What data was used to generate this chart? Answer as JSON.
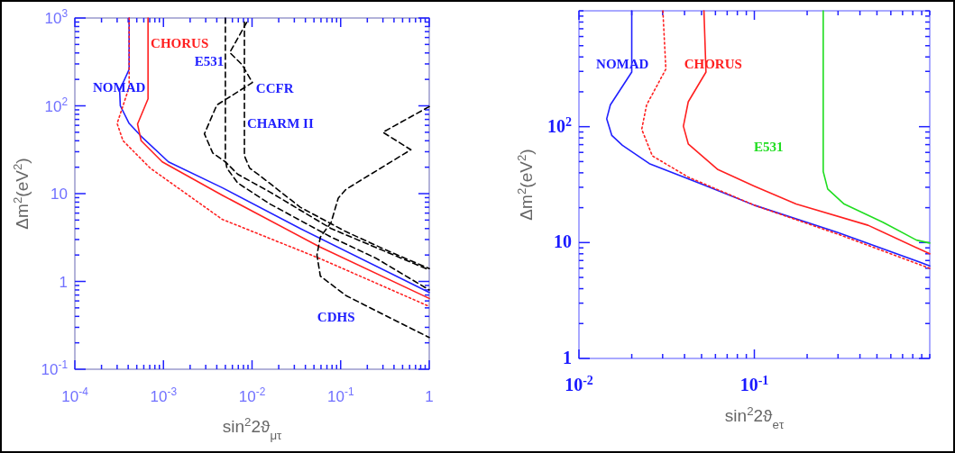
{
  "chart_data": [
    {
      "type": "line",
      "xlabel": "sin$^{2}$2ϑ$_{μτ}$",
      "ylabel": "Δm$^{2}$(eV$^{2}$)",
      "log": "xy",
      "grid": false,
      "xlim": [
        0.0001,
        1
      ],
      "ylim": [
        0.1,
        1000
      ],
      "xticks": [
        {
          "value": 0.0001,
          "label": "10$^{-4}$"
        },
        {
          "value": 0.0002,
          "label": null
        },
        {
          "value": 0.0003,
          "label": null
        },
        {
          "value": 0.0004,
          "label": null
        },
        {
          "value": 0.0005,
          "label": null
        },
        {
          "value": 0.0006,
          "label": null
        },
        {
          "value": 0.0007,
          "label": null
        },
        {
          "value": 0.0008,
          "label": null
        },
        {
          "value": 0.0009,
          "label": null
        },
        {
          "value": 0.001,
          "label": "10$^{-3}$"
        },
        {
          "value": 0.002,
          "label": null
        },
        {
          "value": 0.003,
          "label": null
        },
        {
          "value": 0.004,
          "label": null
        },
        {
          "value": 0.005,
          "label": null
        },
        {
          "value": 0.006,
          "label": null
        },
        {
          "value": 0.007,
          "label": null
        },
        {
          "value": 0.008,
          "label": null
        },
        {
          "value": 0.009,
          "label": null
        },
        {
          "value": 0.01,
          "label": "10$^{-2}$"
        },
        {
          "value": 0.02,
          "label": null
        },
        {
          "value": 0.03,
          "label": null
        },
        {
          "value": 0.04,
          "label": null
        },
        {
          "value": 0.05,
          "label": null
        },
        {
          "value": 0.06,
          "label": null
        },
        {
          "value": 0.07,
          "label": null
        },
        {
          "value": 0.08,
          "label": null
        },
        {
          "value": 0.09,
          "label": null
        },
        {
          "value": 0.1,
          "label": "10$^{-1}$"
        },
        {
          "value": 0.2,
          "label": null
        },
        {
          "value": 0.3,
          "label": null
        },
        {
          "value": 0.4,
          "label": null
        },
        {
          "value": 0.5,
          "label": null
        },
        {
          "value": 0.6,
          "label": null
        },
        {
          "value": 0.7,
          "label": null
        },
        {
          "value": 0.8,
          "label": null
        },
        {
          "value": 0.9,
          "label": null
        },
        {
          "value": 1,
          "label": "1"
        }
      ],
      "yticks": [
        {
          "value": 0.1,
          "label": "10$^{-1}$"
        },
        {
          "value": 0.2,
          "label": null
        },
        {
          "value": 0.3,
          "label": null
        },
        {
          "value": 0.4,
          "label": null
        },
        {
          "value": 0.5,
          "label": null
        },
        {
          "value": 0.6,
          "label": null
        },
        {
          "value": 0.7,
          "label": null
        },
        {
          "value": 0.8,
          "label": null
        },
        {
          "value": 0.9,
          "label": null
        },
        {
          "value": 1,
          "label": "1"
        },
        {
          "value": 2,
          "label": null
        },
        {
          "value": 3,
          "label": null
        },
        {
          "value": 4,
          "label": null
        },
        {
          "value": 5,
          "label": null
        },
        {
          "value": 6,
          "label": null
        },
        {
          "value": 7,
          "label": null
        },
        {
          "value": 8,
          "label": null
        },
        {
          "value": 9,
          "label": null
        },
        {
          "value": 10,
          "label": "10"
        },
        {
          "value": 20,
          "label": null
        },
        {
          "value": 30,
          "label": null
        },
        {
          "value": 40,
          "label": null
        },
        {
          "value": 50,
          "label": null
        },
        {
          "value": 60,
          "label": null
        },
        {
          "value": 70,
          "label": null
        },
        {
          "value": 80,
          "label": null
        },
        {
          "value": 90,
          "label": null
        },
        {
          "value": 100,
          "label": "10$^{2}$"
        },
        {
          "value": 200,
          "label": null
        },
        {
          "value": 300,
          "label": null
        },
        {
          "value": 400,
          "label": null
        },
        {
          "value": 500,
          "label": null
        },
        {
          "value": 600,
          "label": null
        },
        {
          "value": 700,
          "label": null
        },
        {
          "value": 800,
          "label": null
        },
        {
          "value": 900,
          "label": null
        },
        {
          "value": 1000,
          "label": "10$^{3}$"
        }
      ],
      "annotations": [
        "NOMAD",
        "CHORUS",
        "E531",
        "CCFR",
        "CHARM II",
        "CDHS"
      ],
      "series": [
        {
          "color": "#2020ff",
          "line_style": "solid",
          "x": [
            0.00041,
            0.00041,
            0.00032,
            0.000326,
            0.00041,
            0.00056,
            0.00114,
            0.0046,
            0.035,
            1
          ],
          "values": [
            1000,
            260,
            150,
            100,
            63,
            45,
            23,
            11.7,
            4.0,
            0.75
          ]
        },
        {
          "color": "#ff2020",
          "line_style": "solid",
          "x": [
            0.00067,
            0.00067,
            0.00051,
            0.00056,
            0.00097,
            0.0046,
            0.057,
            1
          ],
          "values": [
            1000,
            120,
            62,
            40,
            23,
            9.6,
            2.5,
            0.64
          ]
        },
        {
          "color": "#ff2020",
          "line_style": "dotted",
          "x": [
            0.00041,
            0.00041,
            0.00034,
            0.0003,
            0.00035,
            0.00071,
            0.0046,
            0.057,
            1
          ],
          "values": [
            1000,
            163,
            92,
            63,
            40,
            19.5,
            5.1,
            1.84,
            0.52
          ]
        },
        {
          "color": "#000000",
          "line_style": "dashed",
          "x": [
            0.005,
            0.005,
            0.0052,
            0.0069,
            0.016,
            0.078,
            0.25,
            1
          ],
          "values": [
            1000,
            24.5,
            19.5,
            13.2,
            7.6,
            3.2,
            1.84,
            0.8
          ]
        },
        {
          "color": "#000000",
          "line_style": "dashed",
          "x": [
            0.0087,
            0.0056,
            0.0077,
            0.0101,
            0.004,
            0.0029,
            0.0036,
            0.005,
            0.0069,
            0.016,
            0.078,
            1
          ],
          "values": [
            890,
            405,
            295,
            184,
            102,
            48,
            29,
            23,
            16.6,
            10.4,
            4.0,
            1.35
          ]
        },
        {
          "color": "#000000",
          "line_style": "dashed",
          "x": [
            0.0082,
            0.0082,
            0.0094,
            0.0128,
            0.035,
            0.114,
            0.37,
            1
          ],
          "values": [
            900,
            27,
            19.5,
            15.5,
            7.0,
            3.7,
            2.15,
            1.4
          ]
        },
        {
          "color": "#000000",
          "line_style": "dashed",
          "x": [
            1,
            0.3,
            0.62,
            0.115,
            0.094,
            0.078,
            0.059,
            0.054,
            0.059,
            0.115,
            0.37,
            1
          ],
          "values": [
            98,
            50,
            31.6,
            11.2,
            8.9,
            4.7,
            3.2,
            2.0,
            1.15,
            0.69,
            0.38,
            0.23
          ]
        }
      ]
    },
    {
      "type": "line",
      "xlabel": "sin$^{2}$2ϑ$_{eτ}$",
      "ylabel": "Δm$^{2}$(eV$^{2}$)",
      "log": "xy",
      "grid": false,
      "xlim": [
        0.01,
        1
      ],
      "ylim": [
        1,
        1000
      ],
      "xticks": [
        {
          "value": 0.01,
          "label": "10$^{-2}$"
        },
        {
          "value": 0.02,
          "label": null
        },
        {
          "value": 0.03,
          "label": null
        },
        {
          "value": 0.04,
          "label": null
        },
        {
          "value": 0.05,
          "label": null
        },
        {
          "value": 0.06,
          "label": null
        },
        {
          "value": 0.07,
          "label": null
        },
        {
          "value": 0.08,
          "label": null
        },
        {
          "value": 0.09,
          "label": null
        },
        {
          "value": 0.1,
          "label": "10$^{-1}$"
        },
        {
          "value": 0.2,
          "label": null
        },
        {
          "value": 0.3,
          "label": null
        },
        {
          "value": 0.4,
          "label": null
        },
        {
          "value": 0.5,
          "label": null
        },
        {
          "value": 0.6,
          "label": null
        },
        {
          "value": 0.7,
          "label": null
        },
        {
          "value": 0.8,
          "label": null
        },
        {
          "value": 0.9,
          "label": null
        },
        {
          "value": 1,
          "label": null
        }
      ],
      "yticks": [
        {
          "value": 1,
          "label": "1"
        },
        {
          "value": 2,
          "label": null
        },
        {
          "value": 3,
          "label": null
        },
        {
          "value": 4,
          "label": null
        },
        {
          "value": 5,
          "label": null
        },
        {
          "value": 6,
          "label": null
        },
        {
          "value": 7,
          "label": null
        },
        {
          "value": 8,
          "label": null
        },
        {
          "value": 9,
          "label": null
        },
        {
          "value": 10,
          "label": "10"
        },
        {
          "value": 20,
          "label": null
        },
        {
          "value": 30,
          "label": null
        },
        {
          "value": 40,
          "label": null
        },
        {
          "value": 50,
          "label": null
        },
        {
          "value": 60,
          "label": null
        },
        {
          "value": 70,
          "label": null
        },
        {
          "value": 80,
          "label": null
        },
        {
          "value": 90,
          "label": null
        },
        {
          "value": 100,
          "label": "10$^{2}$"
        },
        {
          "value": 200,
          "label": null
        },
        {
          "value": 300,
          "label": null
        },
        {
          "value": 400,
          "label": null
        },
        {
          "value": 500,
          "label": null
        },
        {
          "value": 600,
          "label": null
        },
        {
          "value": 700,
          "label": null
        },
        {
          "value": 800,
          "label": null
        },
        {
          "value": 900,
          "label": null
        },
        {
          "value": 1000,
          "label": null
        }
      ],
      "annotations": [
        "NOMAD",
        "CHORUS",
        "E531"
      ],
      "series": [
        {
          "color": "#2020ff",
          "line_style": "solid",
          "x": [
            0.02,
            0.02,
            0.0151,
            0.0144,
            0.0154,
            0.0177,
            0.0252,
            0.051,
            0.1,
            0.3,
            1
          ],
          "values": [
            1000,
            296,
            154,
            117,
            84,
            69,
            48,
            31.6,
            21,
            12.2,
            6.3
          ]
        },
        {
          "color": "#ff2020",
          "line_style": "solid",
          "x": [
            0.0516,
            0.053,
            0.042,
            0.0394,
            0.042,
            0.062,
            0.1,
            0.173,
            0.445,
            1
          ],
          "values": [
            1000,
            296,
            164,
            101,
            71,
            42.6,
            30.7,
            21.5,
            14.1,
            8.0
          ]
        },
        {
          "color": "#ff2020",
          "line_style": "dotted",
          "x": [
            0.0301,
            0.0313,
            0.0243,
            0.0228,
            0.0262,
            0.042,
            0.1,
            0.3,
            1
          ],
          "values": [
            1000,
            314,
            154,
            95,
            56,
            36.7,
            21,
            11.8,
            6.0
          ]
        },
        {
          "color": "#20dd20",
          "line_style": "solid",
          "x": [
            0.247,
            0.247,
            0.262,
            0.325,
            0.54,
            0.84,
            1
          ],
          "values": [
            1000,
            41,
            29,
            21.5,
            15,
            10.5,
            9.9
          ]
        }
      ]
    }
  ]
}
